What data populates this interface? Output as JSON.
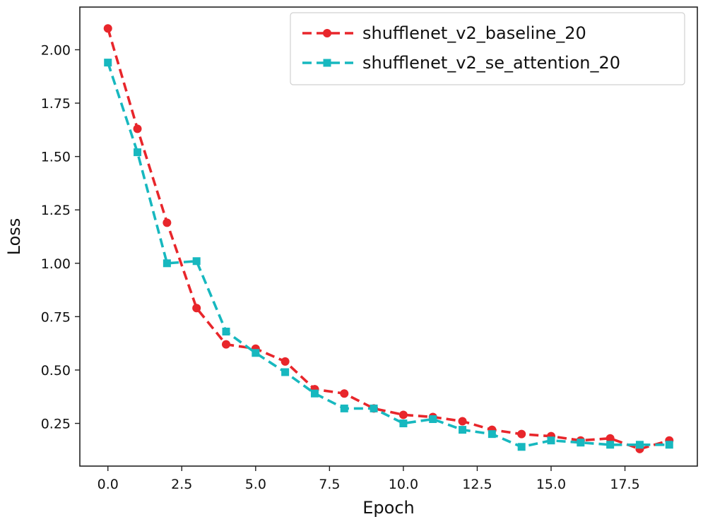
{
  "chart_data": {
    "type": "line",
    "title": "",
    "xlabel": "Epoch",
    "ylabel": "Loss",
    "xlim": [
      -0.95,
      19.95
    ],
    "ylim": [
      0.05,
      2.2
    ],
    "xticks": [
      0,
      2.5,
      5,
      7.5,
      10,
      12.5,
      15,
      17.5
    ],
    "xtick_labels": [
      "0.0",
      "2.5",
      "5.0",
      "7.5",
      "10.0",
      "12.5",
      "15.0",
      "17.5"
    ],
    "yticks": [
      0.25,
      0.5,
      0.75,
      1.0,
      1.25,
      1.5,
      1.75,
      2.0
    ],
    "ytick_labels": [
      "0.25",
      "0.50",
      "0.75",
      "1.00",
      "1.25",
      "1.50",
      "1.75",
      "2.00"
    ],
    "grid": false,
    "legend_position": "top-right",
    "x": [
      0,
      1,
      2,
      3,
      4,
      5,
      6,
      7,
      8,
      9,
      10,
      11,
      12,
      13,
      14,
      15,
      16,
      17,
      18,
      19
    ],
    "series": [
      {
        "name": "shufflenet_v2_baseline_20",
        "color": "#e8262b",
        "marker": "circle",
        "linestyle": "dashed",
        "values": [
          2.1,
          1.63,
          1.19,
          0.79,
          0.62,
          0.6,
          0.54,
          0.41,
          0.39,
          0.32,
          0.29,
          0.28,
          0.26,
          0.22,
          0.2,
          0.19,
          0.17,
          0.18,
          0.13,
          0.17
        ]
      },
      {
        "name": "shufflenet_v2_se_attention_20",
        "color": "#17b8bf",
        "marker": "square",
        "linestyle": "dashed",
        "values": [
          1.94,
          1.52,
          1.0,
          1.01,
          0.68,
          0.58,
          0.49,
          0.39,
          0.32,
          0.32,
          0.25,
          0.27,
          0.22,
          0.2,
          0.14,
          0.17,
          0.16,
          0.15,
          0.15,
          0.15
        ]
      }
    ]
  }
}
